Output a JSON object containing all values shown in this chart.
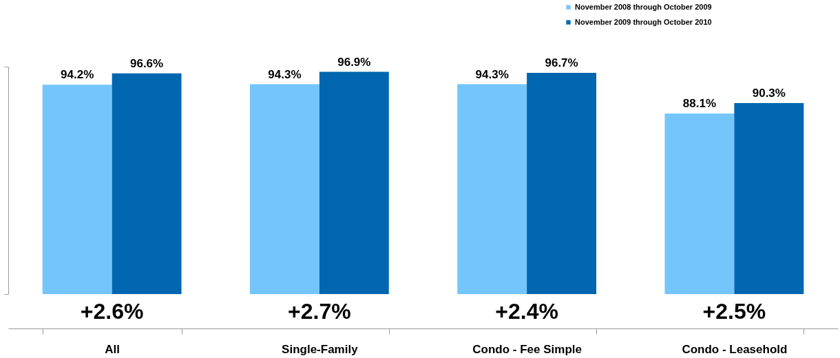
{
  "chart_data": {
    "type": "bar",
    "categories": [
      "All",
      "Single-Family",
      "Condo - Fee Simple",
      "Condo - Leasehold"
    ],
    "series": [
      {
        "name": "November 2008 through October 2009",
        "color": "#75c5fd",
        "values": [
          94.2,
          94.3,
          94.3,
          88.1
        ],
        "value_labels": [
          "94.2%",
          "94.3%",
          "94.3%",
          "88.1%"
        ]
      },
      {
        "name": "November 2009 through October 2010",
        "color": "#0066b0",
        "values": [
          96.6,
          96.9,
          96.7,
          90.3
        ],
        "value_labels": [
          "96.6%",
          "96.9%",
          "96.7%",
          "90.3%"
        ]
      }
    ],
    "ylim": [
      50,
      98
    ],
    "tick_labels": "x",
    "legend": "top right",
    "grid": false,
    "annotations": [
      "+2.6%",
      "+2.7%",
      "+2.4%",
      "+2.5%"
    ]
  }
}
